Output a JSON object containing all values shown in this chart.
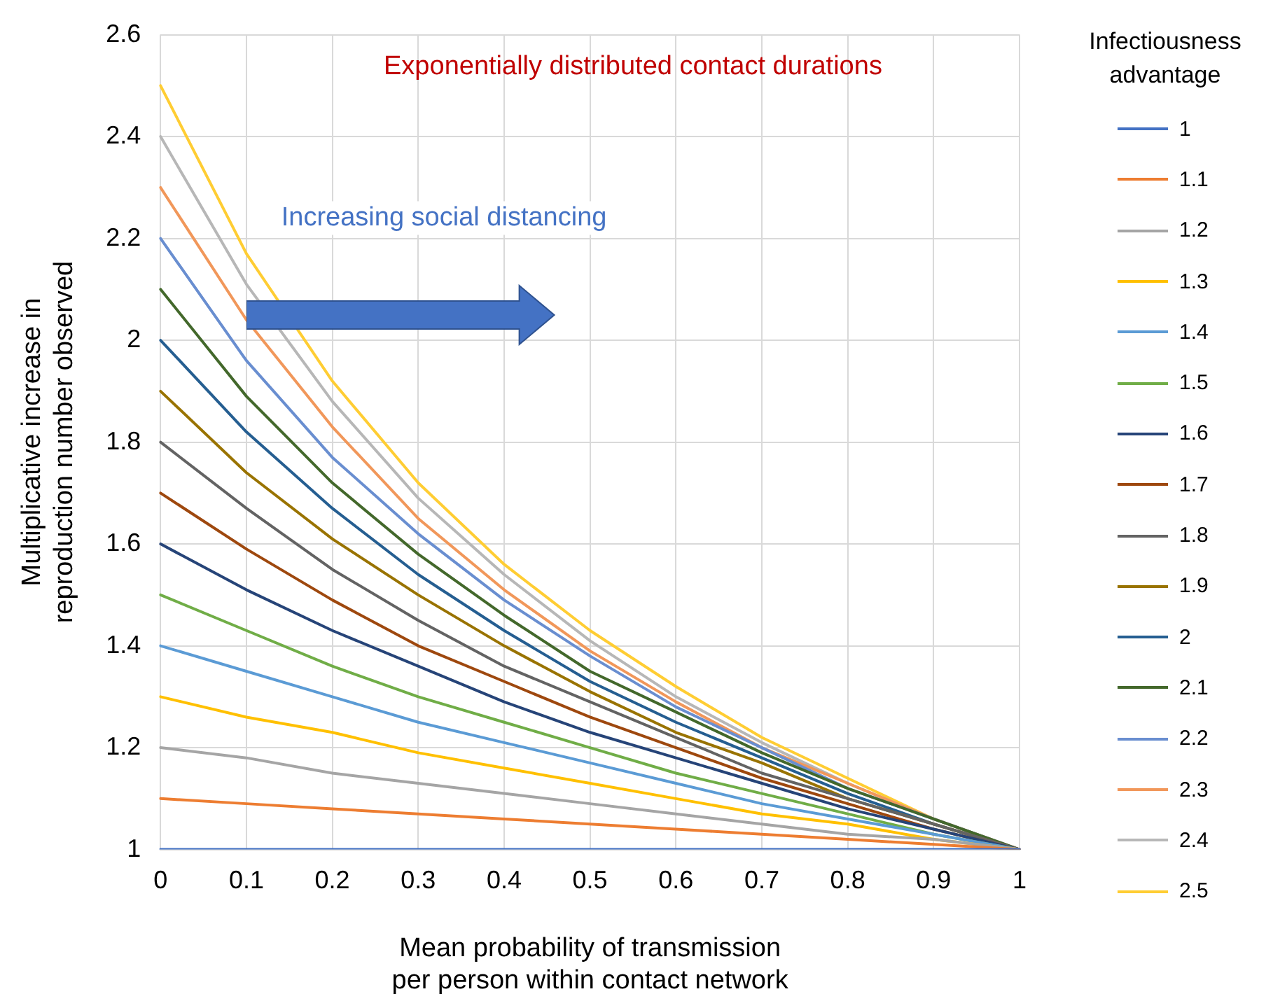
{
  "chart_data": {
    "type": "line",
    "title": "Exponentially distributed contact durations",
    "xlabel": "Mean probability of transmission per person within contact network",
    "ylabel": "Multiplicative increase in reproduction number observed",
    "legend_title": "Infectiousness advantage",
    "annotations": [
      "Increasing social distancing"
    ],
    "categories": [
      "0",
      "0.1",
      "0.2",
      "0.3",
      "0.4",
      "0.5",
      "0.6",
      "0.7",
      "0.8",
      "0.9",
      "1"
    ],
    "ylim": [
      1,
      2.6
    ],
    "yticks": [
      1,
      1.2,
      1.4,
      1.6,
      1.8,
      2,
      2.2,
      2.4,
      2.6
    ],
    "grid": true,
    "legend": "right",
    "marker": "none",
    "line_style": "solid",
    "series": [
      {
        "name": "1",
        "color": "#4472c4",
        "values": [
          1,
          1,
          1,
          1,
          1,
          1,
          1,
          1,
          1,
          1,
          1
        ]
      },
      {
        "name": "1.1",
        "color": "#ed7d31",
        "values": [
          1.1,
          1.09,
          1.08,
          1.07,
          1.06,
          1.05,
          1.04,
          1.03,
          1.02,
          1.01,
          1
        ]
      },
      {
        "name": "1.2",
        "color": "#a5a5a5",
        "values": [
          1.2,
          1.18,
          1.15,
          1.13,
          1.11,
          1.09,
          1.07,
          1.05,
          1.03,
          1.02,
          1
        ]
      },
      {
        "name": "1.3",
        "color": "#ffc000",
        "values": [
          1.3,
          1.26,
          1.23,
          1.19,
          1.16,
          1.13,
          1.1,
          1.07,
          1.05,
          1.02,
          1
        ]
      },
      {
        "name": "1.4",
        "color": "#5b9bd5",
        "values": [
          1.4,
          1.35,
          1.3,
          1.25,
          1.21,
          1.17,
          1.13,
          1.09,
          1.06,
          1.03,
          1
        ]
      },
      {
        "name": "1.5",
        "color": "#70ad47",
        "values": [
          1.5,
          1.43,
          1.36,
          1.3,
          1.25,
          1.2,
          1.15,
          1.11,
          1.07,
          1.03,
          1
        ]
      },
      {
        "name": "1.6",
        "color": "#264478",
        "values": [
          1.6,
          1.51,
          1.43,
          1.36,
          1.29,
          1.23,
          1.18,
          1.13,
          1.08,
          1.04,
          1
        ]
      },
      {
        "name": "1.7",
        "color": "#9e480e",
        "values": [
          1.7,
          1.59,
          1.49,
          1.4,
          1.33,
          1.26,
          1.2,
          1.14,
          1.09,
          1.04,
          1
        ]
      },
      {
        "name": "1.8",
        "color": "#636363",
        "values": [
          1.8,
          1.67,
          1.55,
          1.45,
          1.36,
          1.29,
          1.22,
          1.15,
          1.1,
          1.05,
          1
        ]
      },
      {
        "name": "1.9",
        "color": "#997300",
        "values": [
          1.9,
          1.74,
          1.61,
          1.5,
          1.4,
          1.31,
          1.23,
          1.17,
          1.1,
          1.05,
          1
        ]
      },
      {
        "name": "2",
        "color": "#255e91",
        "values": [
          2,
          1.82,
          1.67,
          1.54,
          1.43,
          1.33,
          1.25,
          1.18,
          1.11,
          1.05,
          1
        ]
      },
      {
        "name": "2.1",
        "color": "#43682b",
        "values": [
          2.1,
          1.89,
          1.72,
          1.58,
          1.46,
          1.35,
          1.27,
          1.19,
          1.12,
          1.06,
          1
        ]
      },
      {
        "name": "2.2",
        "color": "#698ed0",
        "values": [
          2.2,
          1.96,
          1.77,
          1.62,
          1.49,
          1.38,
          1.28,
          1.2,
          1.12,
          1.06,
          1
        ]
      },
      {
        "name": "2.3",
        "color": "#f1975a",
        "values": [
          2.3,
          2.04,
          1.83,
          1.65,
          1.51,
          1.39,
          1.29,
          1.2,
          1.13,
          1.06,
          1
        ]
      },
      {
        "name": "2.4",
        "color": "#b7b7b7",
        "values": [
          2.4,
          2.11,
          1.88,
          1.69,
          1.54,
          1.41,
          1.3,
          1.21,
          1.13,
          1.06,
          1
        ]
      },
      {
        "name": "2.5",
        "color": "#ffcd33",
        "values": [
          2.5,
          2.17,
          1.92,
          1.72,
          1.56,
          1.43,
          1.32,
          1.22,
          1.14,
          1.06,
          1
        ]
      }
    ]
  }
}
